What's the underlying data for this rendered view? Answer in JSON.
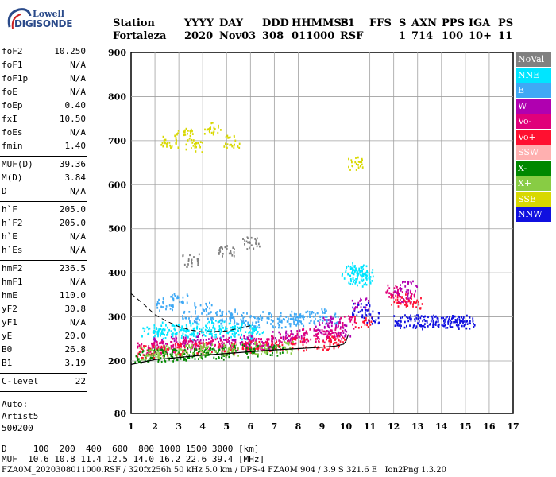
{
  "logo": {
    "line1": "Lowell",
    "line2": "DIGISONDE"
  },
  "header": {
    "labels": [
      "Station",
      "YYYY",
      "DAY",
      "DDD",
      "HHMMSS",
      "P1",
      "FFS",
      "S",
      "AXN",
      "PPS",
      "IGA",
      "PS"
    ],
    "values": [
      "Fortaleza",
      "2020",
      "Nov03",
      "308",
      "011000",
      "RSF",
      "",
      "1",
      "714",
      "100",
      "10+",
      "11"
    ]
  },
  "params": [
    {
      "label": "foF2",
      "value": "10.250"
    },
    {
      "label": "foF1",
      "value": "N/A"
    },
    {
      "label": "foF1p",
      "value": "N/A"
    },
    {
      "label": "foE",
      "value": "N/A"
    },
    {
      "label": "foEp",
      "value": "0.40"
    },
    {
      "label": "fxI",
      "value": "10.50"
    },
    {
      "label": "foEs",
      "value": "N/A"
    },
    {
      "label": "fmin",
      "value": "1.40"
    },
    {
      "label": "MUF(D)",
      "value": "39.36"
    },
    {
      "label": "M(D)",
      "value": "3.84"
    },
    {
      "label": "D",
      "value": "N/A"
    },
    {
      "label": "h`F",
      "value": "205.0"
    },
    {
      "label": "h`F2",
      "value": "205.0"
    },
    {
      "label": "h`E",
      "value": "N/A"
    },
    {
      "label": "h`Es",
      "value": "N/A"
    },
    {
      "label": "hmF2",
      "value": "236.5"
    },
    {
      "label": "hmF1",
      "value": "N/A"
    },
    {
      "label": "hmE",
      "value": "110.0"
    },
    {
      "label": "yF2",
      "value": "30.8"
    },
    {
      "label": "yF1",
      "value": "N/A"
    },
    {
      "label": "yE",
      "value": "20.0"
    },
    {
      "label": "B0",
      "value": "26.8"
    },
    {
      "label": "B1",
      "value": "3.19"
    },
    {
      "label": "C-level",
      "value": "22"
    }
  ],
  "autoscaling": {
    "line1": "Auto:",
    "line2": "Artist5",
    "line3": "500200"
  },
  "legend": [
    {
      "label": "NoVal",
      "color": "#808080"
    },
    {
      "label": "NNE",
      "color": "#00e5ff"
    },
    {
      "label": "E",
      "color": "#3fa9f5"
    },
    {
      "label": "W",
      "color": "#b000b0"
    },
    {
      "label": "Vo-",
      "color": "#e0007a"
    },
    {
      "label": "Vo+",
      "color": "#ff1030"
    },
    {
      "label": "SSW",
      "color": "#ffb0b0"
    },
    {
      "label": "X-",
      "color": "#008800"
    },
    {
      "label": "X+",
      "color": "#88cc44"
    },
    {
      "label": "SSE",
      "color": "#d8d800"
    },
    {
      "label": "NNW",
      "color": "#1010e0"
    }
  ],
  "footer": {
    "d_line": "D     100  200  400  600  800 1000 1500 3000 [km]",
    "muf_line": "MUF  10.6 10.8 11.4 12.5 14.0 16.2 22.6 39.4 [MHz]",
    "file_line": "FZA0M_2020308011000.RSF / 320fx256h 50 kHz 5.0 km / DPS-4 FZA0M 904 / 3.9 S 321.6 E   Ion2Png 1.3.20"
  },
  "chart_data": {
    "type": "scatter",
    "title": "",
    "xlabel": "",
    "ylabel": "",
    "xlim": [
      1,
      17
    ],
    "ylim": [
      80,
      900
    ],
    "x_ticks": [
      1,
      2,
      3,
      4,
      5,
      6,
      7,
      8,
      9,
      10,
      11,
      12,
      13,
      14,
      15,
      16,
      17
    ],
    "y_ticks": [
      80,
      200,
      300,
      400,
      500,
      600,
      700,
      800,
      900
    ],
    "grid": true,
    "legend_position": "right",
    "profile_curve": [
      [
        1.0,
        192
      ],
      [
        2,
        203
      ],
      [
        3,
        208
      ],
      [
        4,
        213
      ],
      [
        5,
        217
      ],
      [
        6,
        221
      ],
      [
        7,
        225
      ],
      [
        8,
        228
      ],
      [
        9,
        231
      ],
      [
        9.6,
        234
      ],
      [
        9.9,
        238
      ],
      [
        10.0,
        245
      ],
      [
        10.1,
        260
      ]
    ],
    "dashed_curve": [
      [
        1.0,
        353
      ],
      [
        1.5,
        330
      ],
      [
        2,
        305
      ],
      [
        2.5,
        290
      ],
      [
        3,
        278
      ],
      [
        3.5,
        270
      ],
      [
        4,
        266
      ],
      [
        5,
        268
      ],
      [
        6,
        280
      ]
    ],
    "series": [
      {
        "name": "NNE",
        "color": "#00e5ff",
        "points": [
          [
            1.8,
            270
          ],
          [
            2.2,
            265
          ],
          [
            2.6,
            275
          ],
          [
            3.0,
            270
          ],
          [
            3.4,
            262
          ],
          [
            3.8,
            275
          ],
          [
            4.2,
            270
          ],
          [
            4.6,
            280
          ],
          [
            5.0,
            268
          ],
          [
            5.4,
            275
          ],
          [
            5.8,
            262
          ],
          [
            6.2,
            270
          ],
          [
            10.1,
            390
          ],
          [
            10.3,
            410
          ],
          [
            10.5,
            405
          ],
          [
            10.7,
            385
          ],
          [
            10.8,
            400
          ]
        ]
      },
      {
        "name": "E",
        "color": "#3fa9f5",
        "points": [
          [
            2.4,
            330
          ],
          [
            3.0,
            340
          ],
          [
            3.5,
            300
          ],
          [
            4.0,
            320
          ],
          [
            4.5,
            300
          ],
          [
            5.0,
            305
          ],
          [
            5.5,
            300
          ],
          [
            6.0,
            290
          ],
          [
            6.5,
            300
          ],
          [
            7.2,
            290
          ],
          [
            7.6,
            300
          ],
          [
            7.9,
            295
          ],
          [
            8.3,
            300
          ],
          [
            8.8,
            305
          ],
          [
            9.3,
            300
          ]
        ]
      },
      {
        "name": "W",
        "color": "#b000b0",
        "points": [
          [
            2.2,
            240
          ],
          [
            3.0,
            245
          ],
          [
            4.0,
            250
          ],
          [
            5.0,
            245
          ],
          [
            5.8,
            250
          ],
          [
            6.5,
            240
          ],
          [
            7.2,
            255
          ],
          [
            8.0,
            260
          ],
          [
            9.0,
            275
          ],
          [
            9.4,
            290
          ],
          [
            9.8,
            270
          ],
          [
            10.6,
            330
          ],
          [
            12.3,
            350
          ],
          [
            12.6,
            370
          ]
        ]
      },
      {
        "name": "Vo-",
        "color": "#e0007a",
        "points": [
          [
            1.6,
            230
          ],
          [
            2.0,
            232
          ],
          [
            2.5,
            235
          ],
          [
            3.0,
            238
          ],
          [
            3.5,
            240
          ],
          [
            4.0,
            238
          ],
          [
            4.5,
            240
          ],
          [
            5.0,
            242
          ],
          [
            5.5,
            240
          ],
          [
            6.0,
            238
          ],
          [
            6.5,
            240
          ],
          [
            7.0,
            245
          ],
          [
            7.5,
            250
          ],
          [
            8.0,
            255
          ],
          [
            8.5,
            260
          ],
          [
            9.0,
            258
          ],
          [
            9.5,
            262
          ],
          [
            10.0,
            290
          ],
          [
            12.0,
            360
          ],
          [
            12.5,
            345
          ]
        ]
      },
      {
        "name": "Vo+",
        "color": "#ff1030",
        "points": [
          [
            1.6,
            222
          ],
          [
            2.2,
            225
          ],
          [
            3.0,
            228
          ],
          [
            4.0,
            230
          ],
          [
            5.0,
            228
          ],
          [
            6.0,
            232
          ],
          [
            7.0,
            235
          ],
          [
            8.0,
            238
          ],
          [
            9.0,
            242
          ],
          [
            9.6,
            245
          ],
          [
            10.7,
            290
          ],
          [
            12.2,
            340
          ],
          [
            12.8,
            335
          ]
        ]
      },
      {
        "name": "X-",
        "color": "#008800",
        "points": [
          [
            1.5,
            212
          ],
          [
            2.0,
            214
          ],
          [
            2.5,
            215
          ],
          [
            3.0,
            218
          ],
          [
            3.5,
            216
          ],
          [
            4.0,
            220
          ],
          [
            4.5,
            218
          ],
          [
            5.0,
            222
          ],
          [
            6.0,
            225
          ],
          [
            7.0,
            228
          ]
        ]
      },
      {
        "name": "X+",
        "color": "#88cc44",
        "points": [
          [
            1.7,
            220
          ],
          [
            2.3,
            222
          ],
          [
            3.2,
            224
          ],
          [
            4.2,
            226
          ],
          [
            5.2,
            228
          ],
          [
            6.4,
            230
          ],
          [
            7.4,
            232
          ]
        ]
      },
      {
        "name": "SSE",
        "color": "#d8d800",
        "points": [
          [
            2.6,
            700
          ],
          [
            3.2,
            720
          ],
          [
            3.6,
            690
          ],
          [
            4.4,
            730
          ],
          [
            5.2,
            700
          ],
          [
            10.4,
            650
          ]
        ]
      },
      {
        "name": "NNW",
        "color": "#1010e0",
        "points": [
          [
            10.6,
            320
          ],
          [
            11.0,
            300
          ],
          [
            12.3,
            290
          ],
          [
            12.8,
            292
          ],
          [
            13.2,
            288
          ],
          [
            13.6,
            292
          ],
          [
            14.0,
            290
          ],
          [
            14.4,
            289
          ],
          [
            14.8,
            291
          ],
          [
            15.0,
            290
          ]
        ]
      },
      {
        "name": "NoVal",
        "color": "#808080",
        "points": [
          [
            3.5,
            430
          ],
          [
            5.0,
            450
          ],
          [
            6.0,
            470
          ]
        ]
      }
    ]
  }
}
